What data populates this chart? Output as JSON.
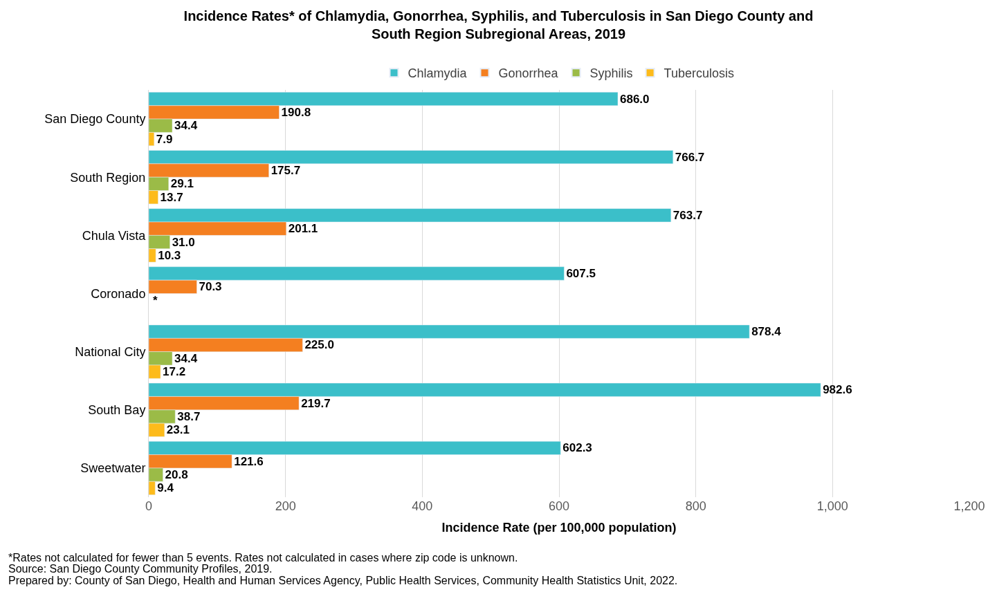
{
  "chart_data": {
    "type": "bar",
    "orientation": "horizontal",
    "title": "Incidence Rates* of Chlamydia, Gonorrhea, Syphilis, and Tuberculosis in San Diego County and South Region Subregional Areas, 2019",
    "xlabel": "Incidence Rate (per 100,000 population)",
    "categories": [
      "San Diego County",
      "South Region",
      "Chula Vista",
      "Coronado",
      "National City",
      "South Bay",
      "Sweetwater"
    ],
    "series": [
      {
        "name": "Chlamydia",
        "color": "#3bbfc9",
        "values": [
          686.0,
          766.7,
          763.7,
          607.5,
          878.4,
          982.6,
          602.3
        ],
        "value_labels": [
          "686.0",
          "766.7",
          "763.7",
          "607.5",
          "878.4",
          "982.6",
          "602.3"
        ]
      },
      {
        "name": "Gonorrhea",
        "color": "#f47f20",
        "values": [
          190.8,
          175.7,
          201.1,
          70.3,
          225.0,
          219.7,
          121.6
        ],
        "value_labels": [
          "190.8",
          "175.7",
          "201.1",
          "70.3",
          "225.0",
          "219.7",
          "121.6"
        ]
      },
      {
        "name": "Syphilis",
        "color": "#9bbb47",
        "values": [
          34.4,
          29.1,
          31.0,
          null,
          34.4,
          38.7,
          20.8
        ],
        "value_labels": [
          "34.4",
          "29.1",
          "31.0",
          "*",
          "34.4",
          "38.7",
          "20.8"
        ]
      },
      {
        "name": "Tuberculosis",
        "color": "#fdbb1b",
        "values": [
          7.9,
          13.7,
          10.3,
          null,
          17.2,
          23.1,
          9.4
        ],
        "value_labels": [
          "7.9",
          "13.7",
          "10.3",
          null,
          "17.2",
          "23.1",
          "9.4"
        ]
      }
    ],
    "xlim": [
      0,
      1200
    ],
    "xticks": [
      0,
      200,
      400,
      600,
      800,
      {
        "value": 1000,
        "label": "1,000"
      },
      {
        "value": 1200,
        "label": "1,200"
      }
    ],
    "grid": "x",
    "legend": "top",
    "annotations": [
      "*Rates not calculated for fewer than 5 events. Rates not calculated in cases where zip code is unknown.",
      "Source: San Diego County Community Profiles, 2019.",
      "Prepared by: County of San Diego, Health and Human Services Agency, Public Health Services, Community Health Statistics Unit, 2022."
    ]
  }
}
